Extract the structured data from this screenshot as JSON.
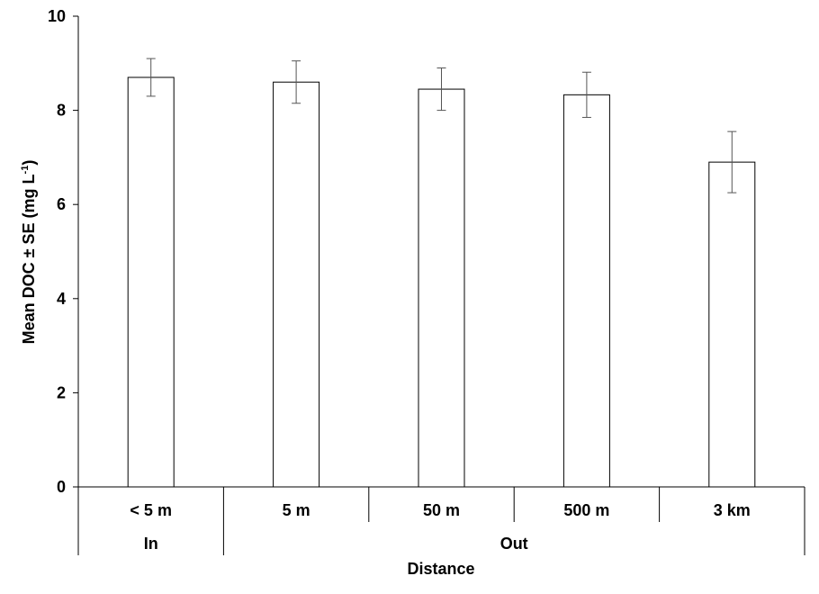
{
  "chart_data": {
    "type": "bar",
    "categories": [
      "< 5 m",
      "5 m",
      "50 m",
      "500 m",
      "3 km"
    ],
    "groups": [
      {
        "label": "In",
        "categories": [
          "< 5 m"
        ]
      },
      {
        "label": "Out",
        "categories": [
          "5 m",
          "50 m",
          "500 m",
          "3 km"
        ]
      }
    ],
    "series": [
      {
        "values": [
          8.7,
          8.6,
          8.45,
          8.33,
          6.9
        ],
        "errors": [
          0.4,
          0.45,
          0.45,
          0.48,
          0.65
        ]
      }
    ],
    "title": "",
    "xlabel": "Distance",
    "ylabel_main": "Mean DOC ± SE (mg L",
    "ylabel_sup": "-1",
    "ylabel_close": ")",
    "ylim": [
      0,
      10
    ],
    "yticks": [
      0,
      2,
      4,
      6,
      8,
      10
    ],
    "ytick_labels": [
      "0",
      "2",
      "4",
      "6",
      "8",
      "10"
    ],
    "grid": false,
    "legend": "none",
    "colors": {
      "bar_fill": "#ffffff",
      "bar_stroke": "#000000",
      "axis": "#000000",
      "error_bar": "#555555"
    }
  }
}
